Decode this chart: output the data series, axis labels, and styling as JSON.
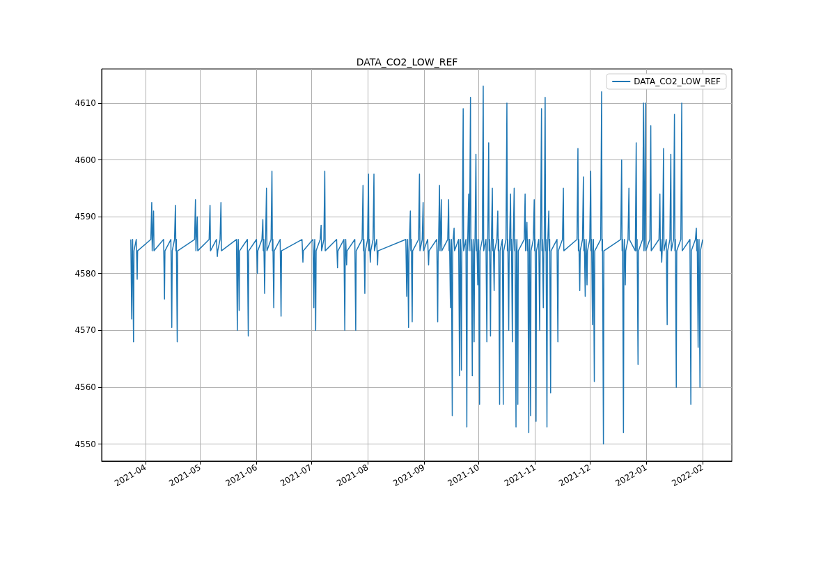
{
  "chart_data": {
    "type": "line",
    "title": "DATA_CO2_LOW_REF",
    "legend": "top right",
    "grid": true,
    "xlim": [
      "2021-03-08",
      "2022-02-17"
    ],
    "ylim": [
      4547,
      4616
    ],
    "xticks": [
      "2021-04",
      "2021-05",
      "2021-06",
      "2021-07",
      "2021-08",
      "2021-09",
      "2021-10",
      "2021-11",
      "2021-12",
      "2022-01",
      "2022-02"
    ],
    "yticks": [
      4550,
      4560,
      4570,
      4580,
      4590,
      4600,
      4610
    ],
    "series": [
      {
        "name": "DATA_CO2_LOW_REF",
        "color": "#1f77b4",
        "x": [
          "2021-03-24",
          "2021-03-24T12:00",
          "2021-03-24T18:00",
          "2021-03-25",
          "2021-03-25T12:00",
          "2021-03-25T18:00",
          "2021-03-27",
          "2021-03-27T12:00",
          "2021-03-27T18:00",
          "2021-04-04",
          "2021-04-04T12:00",
          "2021-04-04T18:00",
          "2021-04-05",
          "2021-04-05T12:00",
          "2021-04-05T18:00",
          "2021-04-11",
          "2021-04-11T12:00",
          "2021-04-11T18:00",
          "2021-04-15",
          "2021-04-15T12:00",
          "2021-04-15T18:00",
          "2021-04-17",
          "2021-04-17T12:00",
          "2021-04-17T18:00",
          "2021-04-18",
          "2021-04-18T12:00",
          "2021-04-18T18:00",
          "2021-04-28",
          "2021-04-28T12:00",
          "2021-04-28T18:00",
          "2021-04-29",
          "2021-04-29T12:00",
          "2021-04-29T18:00",
          "2021-05-06",
          "2021-05-06T12:00",
          "2021-05-06T18:00",
          "2021-05-10",
          "2021-05-10T12:00",
          "2021-05-10T18:00",
          "2021-05-12",
          "2021-05-12T12:00",
          "2021-05-12T18:00",
          "2021-05-21",
          "2021-05-21T12:00",
          "2021-05-21T18:00",
          "2021-05-22",
          "2021-05-22T12:00",
          "2021-05-22T18:00",
          "2021-05-27",
          "2021-05-27T12:00",
          "2021-05-27T18:00",
          "2021-06-01",
          "2021-06-01T12:00",
          "2021-06-01T18:00",
          "2021-06-04",
          "2021-06-04T12:00",
          "2021-06-04T18:00",
          "2021-06-05",
          "2021-06-05T12:00",
          "2021-06-05T18:00",
          "2021-06-06",
          "2021-06-06T12:00",
          "2021-06-06T18:00",
          "2021-06-09",
          "2021-06-09T12:00",
          "2021-06-09T18:00",
          "2021-06-10",
          "2021-06-10T12:00",
          "2021-06-10T18:00",
          "2021-06-14",
          "2021-06-14T12:00",
          "2021-06-14T18:00",
          "2021-06-26",
          "2021-06-26T12:00",
          "2021-06-26T18:00",
          "2021-07-02",
          "2021-07-02T12:00",
          "2021-07-02T18:00",
          "2021-07-03",
          "2021-07-03T12:00",
          "2021-07-03T18:00",
          "2021-07-06",
          "2021-07-06T12:00",
          "2021-07-06T18:00",
          "2021-07-08",
          "2021-07-08T12:00",
          "2021-07-08T18:00",
          "2021-07-15",
          "2021-07-15T12:00",
          "2021-07-15T18:00",
          "2021-07-19",
          "2021-07-19T12:00",
          "2021-07-19T18:00",
          "2021-07-20",
          "2021-07-20T12:00",
          "2021-07-20T18:00",
          "2021-07-25",
          "2021-07-25T12:00",
          "2021-07-25T18:00",
          "2021-07-29",
          "2021-07-29T12:00",
          "2021-07-29T18:00",
          "2021-07-30",
          "2021-07-30T12:00",
          "2021-07-30T18:00",
          "2021-08-01",
          "2021-08-01T12:00",
          "2021-08-01T18:00",
          "2021-08-02",
          "2021-08-02T12:00",
          "2021-08-02T18:00",
          "2021-08-04",
          "2021-08-04T12:00",
          "2021-08-04T18:00",
          "2021-08-06",
          "2021-08-06T12:00",
          "2021-08-06T18:00",
          "2021-08-22",
          "2021-08-22T12:00",
          "2021-08-22T18:00",
          "2021-08-23",
          "2021-08-23T12:00",
          "2021-08-23T18:00",
          "2021-08-24",
          "2021-08-24T12:00",
          "2021-08-24T18:00",
          "2021-08-25",
          "2021-08-25T12:00",
          "2021-08-25T18:00",
          "2021-08-29",
          "2021-08-29T12:00",
          "2021-08-29T18:00",
          "2021-08-31",
          "2021-08-31T12:00",
          "2021-08-31T18:00",
          "2021-09-03",
          "2021-09-03T12:00",
          "2021-09-03T18:00",
          "2021-09-08",
          "2021-09-08T12:00",
          "2021-09-08T18:00",
          "2021-09-09",
          "2021-09-09T12:00",
          "2021-09-09T18:00",
          "2021-09-10",
          "2021-09-10T12:00",
          "2021-09-10T18:00",
          "2021-09-14",
          "2021-09-14T12:00",
          "2021-09-14T18:00",
          "2021-09-15",
          "2021-09-15T12:00",
          "2021-09-15T18:00",
          "2021-09-16",
          "2021-09-16T12:00",
          "2021-09-16T18:00",
          "2021-09-17",
          "2021-09-17T12:00",
          "2021-09-17T18:00",
          "2021-09-20",
          "2021-09-20T12:00",
          "2021-09-20T18:00",
          "2021-09-21",
          "2021-09-21T12:00",
          "2021-09-21T18:00",
          "2021-09-22",
          "2021-09-22T12:00",
          "2021-09-22T18:00",
          "2021-09-24",
          "2021-09-24T12:00",
          "2021-09-24T18:00",
          "2021-09-25",
          "2021-09-25T12:00",
          "2021-09-25T18:00",
          "2021-09-26",
          "2021-09-26T12:00",
          "2021-09-26T18:00",
          "2021-09-27",
          "2021-09-27T12:00",
          "2021-09-27T18:00",
          "2021-09-28",
          "2021-09-28T12:00",
          "2021-09-28T18:00",
          "2021-09-29",
          "2021-09-29T12:00",
          "2021-09-29T18:00",
          "2021-09-30",
          "2021-09-30T12:00",
          "2021-09-30T18:00",
          "2021-10-01",
          "2021-10-01T12:00",
          "2021-10-01T18:00",
          "2021-10-03",
          "2021-10-03T12:00",
          "2021-10-03T18:00",
          "2021-10-05",
          "2021-10-05T12:00",
          "2021-10-05T18:00",
          "2021-10-06",
          "2021-10-06T12:00",
          "2021-10-06T18:00",
          "2021-10-07",
          "2021-10-07T12:00",
          "2021-10-07T18:00",
          "2021-10-08",
          "2021-10-08T12:00",
          "2021-10-08T18:00",
          "2021-10-09",
          "2021-10-09T12:00",
          "2021-10-09T18:00",
          "2021-10-11",
          "2021-10-11T12:00",
          "2021-10-11T18:00",
          "2021-10-12",
          "2021-10-12T12:00",
          "2021-10-12T18:00",
          "2021-10-14",
          "2021-10-14T12:00",
          "2021-10-14T18:00",
          "2021-10-16",
          "2021-10-16T12:00",
          "2021-10-16T18:00",
          "2021-10-17",
          "2021-10-17T12:00",
          "2021-10-17T18:00",
          "2021-10-18",
          "2021-10-18T12:00",
          "2021-10-18T18:00",
          "2021-10-19",
          "2021-10-19T12:00",
          "2021-10-19T18:00",
          "2021-10-20",
          "2021-10-20T12:00",
          "2021-10-20T18:00",
          "2021-10-21",
          "2021-10-21T12:00",
          "2021-10-21T18:00",
          "2021-10-22",
          "2021-10-22T12:00",
          "2021-10-22T18:00",
          "2021-10-26",
          "2021-10-26T12:00",
          "2021-10-26T18:00",
          "2021-10-27",
          "2021-10-27T12:00",
          "2021-10-27T18:00",
          "2021-10-28",
          "2021-10-28T12:00",
          "2021-10-28T18:00",
          "2021-10-29",
          "2021-10-29T12:00",
          "2021-10-29T18:00",
          "2021-10-31",
          "2021-10-31T12:00",
          "2021-10-31T18:00",
          "2021-11-01",
          "2021-11-01T12:00",
          "2021-11-01T18:00",
          "2021-11-03",
          "2021-11-03T12:00",
          "2021-11-03T18:00",
          "2021-11-04",
          "2021-11-04T12:00",
          "2021-11-04T18:00",
          "2021-11-05",
          "2021-11-05T12:00",
          "2021-11-05T18:00",
          "2021-11-06",
          "2021-11-06T12:00",
          "2021-11-06T18:00",
          "2021-11-07",
          "2021-11-07T12:00",
          "2021-11-07T18:00",
          "2021-11-08",
          "2021-11-08T12:00",
          "2021-11-08T18:00",
          "2021-11-09",
          "2021-11-09T12:00",
          "2021-11-09T18:00",
          "2021-11-13",
          "2021-11-13T12:00",
          "2021-11-13T18:00",
          "2021-11-16",
          "2021-11-16T12:00",
          "2021-11-16T18:00",
          "2021-11-24",
          "2021-11-24T12:00",
          "2021-11-24T18:00",
          "2021-11-25",
          "2021-11-25T12:00",
          "2021-11-25T18:00",
          "2021-11-27",
          "2021-11-27T12:00",
          "2021-11-27T18:00",
          "2021-11-28",
          "2021-11-28T12:00",
          "2021-11-28T18:00",
          "2021-11-29",
          "2021-11-29T12:00",
          "2021-11-29T18:00",
          "2021-12-01",
          "2021-12-01T12:00",
          "2021-12-01T18:00",
          "2021-12-02",
          "2021-12-02T12:00",
          "2021-12-02T18:00",
          "2021-12-03",
          "2021-12-03T12:00",
          "2021-12-03T18:00",
          "2021-12-07",
          "2021-12-07T12:00",
          "2021-12-07T18:00",
          "2021-12-08",
          "2021-12-08T12:00",
          "2021-12-08T18:00",
          "2021-12-18",
          "2021-12-18T12:00",
          "2021-12-18T18:00",
          "2021-12-19",
          "2021-12-19T12:00",
          "2021-12-19T18:00",
          "2021-12-20",
          "2021-12-20T12:00",
          "2021-12-20T18:00",
          "2021-12-22",
          "2021-12-22T12:00",
          "2021-12-22T18:00",
          "2021-12-26",
          "2021-12-26T12:00",
          "2021-12-26T18:00",
          "2021-12-27",
          "2021-12-27T12:00",
          "2021-12-27T18:00",
          "2021-12-30",
          "2021-12-30T12:00",
          "2021-12-30T18:00",
          "2021-12-31",
          "2021-12-31T12:00",
          "2021-12-31T18:00",
          "2022-01-03",
          "2022-01-03T12:00",
          "2022-01-03T18:00",
          "2022-01-08",
          "2022-01-08T12:00",
          "2022-01-08T18:00",
          "2022-01-09",
          "2022-01-09T12:00",
          "2022-01-09T18:00",
          "2022-01-10",
          "2022-01-10T12:00",
          "2022-01-10T18:00",
          "2022-01-12",
          "2022-01-12T12:00",
          "2022-01-12T18:00",
          "2022-01-14",
          "2022-01-14T12:00",
          "2022-01-14T18:00",
          "2022-01-16",
          "2022-01-16T12:00",
          "2022-01-16T18:00",
          "2022-01-17",
          "2022-01-17T12:00",
          "2022-01-17T18:00",
          "2022-01-20",
          "2022-01-20T12:00",
          "2022-01-20T18:00",
          "2022-01-25",
          "2022-01-25T12:00",
          "2022-01-25T18:00",
          "2022-01-28",
          "2022-01-28T12:00",
          "2022-01-28T18:00",
          "2022-01-29",
          "2022-01-29T12:00",
          "2022-01-29T18:00",
          "2022-01-30",
          "2022-01-30T12:00",
          "2022-01-30T18:00",
          "2022-02-01"
        ],
        "values": [
          4586,
          4572,
          4584,
          4586,
          4568,
          4584,
          4586,
          4579,
          4584,
          4586,
          4592.5,
          4584,
          4586,
          4591,
          4584,
          4586,
          4575.5,
          4584,
          4586,
          4570.5,
          4584,
          4586,
          4592,
          4584,
          4586,
          4568,
          4584,
          4586,
          4593,
          4584,
          4586,
          4590,
          4584,
          4586,
          4592,
          4584,
          4586,
          4583,
          4584,
          4586,
          4592.5,
          4584,
          4586,
          4570,
          4584,
          4586,
          4573.5,
          4584,
          4586,
          4569,
          4584,
          4586,
          4580,
          4584,
          4586,
          4589.5,
          4584,
          4586,
          4576.5,
          4584,
          4586,
          4595,
          4584,
          4586,
          4598,
          4584,
          4586,
          4574,
          4584,
          4586,
          4572.5,
          4584,
          4586,
          4582,
          4584,
          4586,
          4574,
          4584,
          4586,
          4570,
          4584,
          4586,
          4588.5,
          4584,
          4586,
          4598,
          4584,
          4586,
          4581,
          4584,
          4586,
          4570,
          4584,
          4586,
          4581.5,
          4584,
          4586,
          4570,
          4584,
          4586,
          4595.5,
          4584,
          4586,
          4576.5,
          4584,
          4586,
          4597.5,
          4584,
          4586,
          4582,
          4584,
          4586,
          4597.5,
          4584,
          4586,
          4581.5,
          4584,
          4586,
          4576,
          4584,
          4586,
          4570.5,
          4584,
          4586,
          4591,
          4584,
          4586,
          4571.5,
          4584,
          4586,
          4597.5,
          4584,
          4586,
          4592.5,
          4584,
          4586,
          4581.5,
          4584,
          4586,
          4571.5,
          4584,
          4586,
          4595.5,
          4584,
          4586,
          4593,
          4584,
          4586,
          4593,
          4584,
          4586,
          4574,
          4584,
          4586,
          4555,
          4584,
          4586,
          4588,
          4584,
          4586,
          4562,
          4584,
          4586,
          4563,
          4584,
          4586,
          4609,
          4584,
          4586,
          4553,
          4584,
          4586,
          4594,
          4584,
          4586,
          4611,
          4584,
          4586,
          4562,
          4584,
          4586,
          4568,
          4584,
          4586,
          4601,
          4584,
          4586,
          4578,
          4584,
          4586,
          4557,
          4584,
          4586,
          4613,
          4584,
          4586,
          4568,
          4584,
          4586,
          4603,
          4584,
          4586,
          4569,
          4584,
          4586,
          4595,
          4584,
          4586,
          4577,
          4584,
          4586,
          4591,
          4584,
          4586,
          4557,
          4584,
          4586,
          4557,
          4584,
          4586,
          4610,
          4584,
          4586,
          4570,
          4584,
          4586,
          4594,
          4584,
          4586,
          4568,
          4584,
          4586,
          4595,
          4584,
          4586,
          4553,
          4584,
          4586,
          4557,
          4584,
          4586,
          4594,
          4584,
          4586,
          4589,
          4584,
          4586,
          4552,
          4584,
          4586,
          4555,
          4584,
          4586,
          4593,
          4584,
          4586,
          4554,
          4584,
          4586,
          4570,
          4584,
          4586,
          4609,
          4584,
          4586,
          4574,
          4584,
          4586,
          4611,
          4584,
          4586,
          4553,
          4584,
          4586,
          4591,
          4584,
          4586,
          4559,
          4584,
          4586,
          4568,
          4584,
          4586,
          4595,
          4584,
          4586,
          4602,
          4584,
          4586,
          4577,
          4584,
          4586,
          4597,
          4584,
          4586,
          4576,
          4584,
          4586,
          4578,
          4584,
          4586,
          4598,
          4584,
          4586,
          4571,
          4584,
          4586,
          4561,
          4584,
          4586,
          4612,
          4584,
          4586,
          4550,
          4584,
          4586,
          4600,
          4584,
          4586,
          4552,
          4584,
          4586,
          4578,
          4584,
          4586,
          4595,
          4586,
          4584,
          4603,
          4584,
          4586,
          4564,
          4584,
          4586,
          4610,
          4584,
          4586,
          4610,
          4584,
          4586,
          4606,
          4584,
          4586,
          4594,
          4584,
          4586,
          4582,
          4584,
          4586,
          4602,
          4584,
          4586,
          4571,
          4584,
          4586,
          4601,
          4584,
          4586,
          4608,
          4584,
          4586,
          4560,
          4584,
          4586,
          4610,
          4584,
          4586,
          4557,
          4584,
          4586,
          4588,
          4584,
          4586,
          4567,
          4584,
          4586,
          4560,
          4584,
          4586
        ]
      }
    ]
  }
}
